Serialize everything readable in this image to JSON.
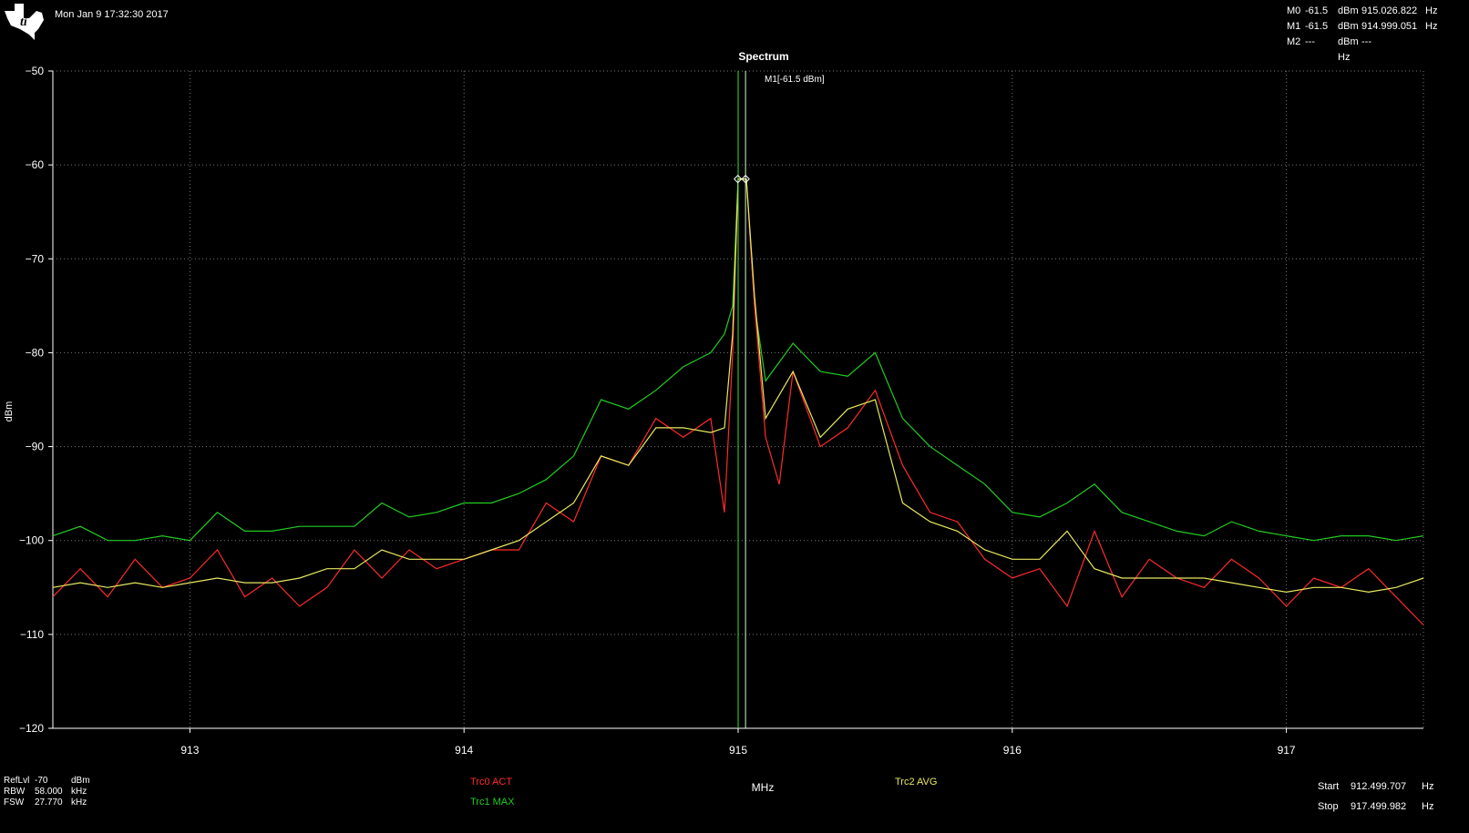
{
  "header": {
    "timestamp": "Mon Jan 9 17:32:30 2017",
    "title": "Spectrum"
  },
  "markers": [
    {
      "name": "M0",
      "level": "-61.5",
      "level_unit": "dBm",
      "freq": "915.026.822",
      "freq_unit": "Hz"
    },
    {
      "name": "M1",
      "level": "-61.5",
      "level_unit": "dBm",
      "freq": "914.999.051",
      "freq_unit": "Hz"
    },
    {
      "name": "M2",
      "level": "---",
      "level_unit": "dBm",
      "freq": "---",
      "freq_unit": "Hz"
    }
  ],
  "marker_annotation": "M1[-61.5 dBm]",
  "settings": {
    "reflvl_label": "RefLvl",
    "reflvl_value": "-70",
    "reflvl_unit": "dBm",
    "rbw_label": "RBW",
    "rbw_value": "58.000",
    "rbw_unit": "kHz",
    "fsw_label": "FSW",
    "fsw_value": "27.770",
    "fsw_unit": "kHz",
    "start_label": "Start",
    "start_value": "912.499.707",
    "start_unit": "Hz",
    "stop_label": "Stop",
    "stop_value": "917.499.982",
    "stop_unit": "Hz"
  },
  "traces": [
    {
      "label": "Trc0  ACT",
      "color": "#ff2a2a"
    },
    {
      "label": "Trc1  MAX",
      "color": "#22cc22"
    },
    {
      "label": "Trc2  AVG",
      "color": "#e8e860"
    }
  ],
  "chart_data": {
    "type": "line",
    "title": "Spectrum",
    "xlabel": "MHz",
    "ylabel": "dBm",
    "xlim": [
      912.5,
      917.5
    ],
    "ylim": [
      -120,
      -50
    ],
    "xticks": [
      913,
      914,
      915,
      916,
      917
    ],
    "yticks": [
      -50,
      -60,
      -70,
      -80,
      -90,
      -100,
      -110,
      -120
    ],
    "grid": true,
    "marker_lines": [
      915.0,
      915.027
    ],
    "marker_points": [
      {
        "x": 914.999,
        "y": -61.5
      },
      {
        "x": 915.027,
        "y": -61.5
      }
    ],
    "series": [
      {
        "name": "Trc1  MAX",
        "color": "#22cc22",
        "x": [
          912.5,
          912.6,
          912.7,
          912.8,
          912.9,
          913.0,
          913.1,
          913.2,
          913.3,
          913.4,
          913.5,
          913.6,
          913.7,
          913.8,
          913.9,
          914.0,
          914.1,
          914.2,
          914.3,
          914.4,
          914.5,
          914.6,
          914.7,
          914.8,
          914.9,
          914.95,
          914.98,
          915.0,
          915.03,
          915.06,
          915.1,
          915.2,
          915.3,
          915.4,
          915.5,
          915.6,
          915.7,
          915.8,
          915.9,
          916.0,
          916.1,
          916.2,
          916.3,
          916.4,
          916.5,
          916.6,
          916.7,
          916.8,
          916.9,
          917.0,
          917.1,
          917.2,
          917.3,
          917.4,
          917.5
        ],
        "y": [
          -99.5,
          -98.5,
          -100,
          -100,
          -99.5,
          -100,
          -97,
          -99,
          -99,
          -98.5,
          -98.5,
          -98.5,
          -96,
          -97.5,
          -97,
          -96,
          -96,
          -95,
          -93.5,
          -91,
          -85,
          -86,
          -84,
          -81.5,
          -80,
          -78,
          -75,
          -61.5,
          -61.5,
          -75,
          -83,
          -79,
          -82,
          -82.5,
          -80,
          -87,
          -90,
          -92,
          -94,
          -97,
          -97.5,
          -96,
          -94,
          -97,
          -98,
          -99,
          -99.5,
          -98,
          -99,
          -99.5,
          -100,
          -99.5,
          -99.5,
          -100,
          -99.5
        ]
      },
      {
        "name": "Trc0  ACT",
        "color": "#ff2a2a",
        "x": [
          912.5,
          912.6,
          912.7,
          912.8,
          912.9,
          913.0,
          913.1,
          913.2,
          913.3,
          913.4,
          913.5,
          913.6,
          913.7,
          913.8,
          913.9,
          914.0,
          914.1,
          914.2,
          914.3,
          914.4,
          914.5,
          914.6,
          914.7,
          914.8,
          914.9,
          914.95,
          914.98,
          915.0,
          915.03,
          915.06,
          915.1,
          915.15,
          915.2,
          915.3,
          915.4,
          915.5,
          915.6,
          915.7,
          915.8,
          915.9,
          916.0,
          916.1,
          916.2,
          916.3,
          916.4,
          916.5,
          916.6,
          916.7,
          916.8,
          916.9,
          917.0,
          917.1,
          917.2,
          917.3,
          917.4,
          917.5
        ],
        "y": [
          -106,
          -103,
          -106,
          -102,
          -105,
          -104,
          -101,
          -106,
          -104,
          -107,
          -105,
          -101,
          -104,
          -101,
          -103,
          -102,
          -101,
          -101,
          -96,
          -98,
          -91,
          -92,
          -87,
          -89,
          -87,
          -97,
          -80,
          -61.5,
          -61.5,
          -75,
          -89,
          -94,
          -82,
          -90,
          -88,
          -84,
          -92,
          -97,
          -98,
          -102,
          -104,
          -103,
          -107,
          -99,
          -106,
          -102,
          -104,
          -105,
          -102,
          -104,
          -107,
          -104,
          -105,
          -103,
          -106,
          -109
        ]
      },
      {
        "name": "Trc2  AVG",
        "color": "#e8e860",
        "x": [
          912.5,
          912.6,
          912.7,
          912.8,
          912.9,
          913.0,
          913.1,
          913.2,
          913.3,
          913.4,
          913.5,
          913.6,
          913.7,
          913.8,
          913.9,
          914.0,
          914.1,
          914.2,
          914.3,
          914.4,
          914.5,
          914.6,
          914.7,
          914.8,
          914.9,
          914.95,
          914.98,
          915.0,
          915.03,
          915.06,
          915.1,
          915.2,
          915.3,
          915.4,
          915.5,
          915.6,
          915.7,
          915.8,
          915.9,
          916.0,
          916.1,
          916.2,
          916.3,
          916.4,
          916.5,
          916.6,
          916.7,
          916.8,
          916.9,
          917.0,
          917.1,
          917.2,
          917.3,
          917.4,
          917.5
        ],
        "y": [
          -105,
          -104.5,
          -105,
          -104.5,
          -105,
          -104.5,
          -104,
          -104.5,
          -104.5,
          -104,
          -103,
          -103,
          -101,
          -102,
          -102,
          -102,
          -101,
          -100,
          -98,
          -96,
          -91,
          -92,
          -88,
          -88,
          -88.5,
          -88,
          -78,
          -61.5,
          -61.5,
          -74,
          -87,
          -82,
          -89,
          -86,
          -85,
          -96,
          -98,
          -99,
          -101,
          -102,
          -102,
          -99,
          -103,
          -104,
          -104,
          -104,
          -104,
          -104.5,
          -105,
          -105.5,
          -105,
          -105,
          -105.5,
          -105,
          -104
        ]
      }
    ]
  }
}
